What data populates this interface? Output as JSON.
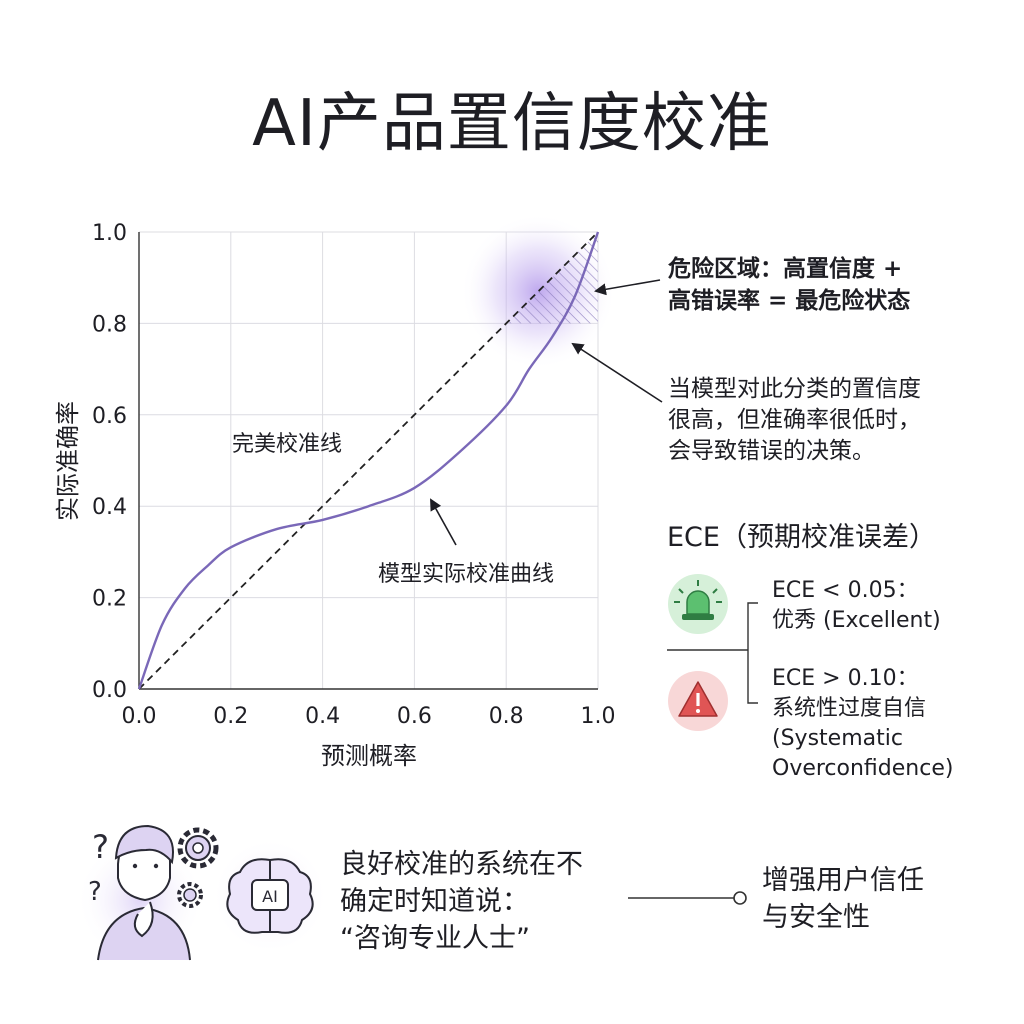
{
  "title": "AI产品置信度校准",
  "chart_data": {
    "type": "line",
    "xlabel": "预测概率",
    "ylabel": "实际准确率",
    "xlim": [
      0,
      1
    ],
    "ylim": [
      0,
      1
    ],
    "x_ticks": [
      "0.0",
      "0.2",
      "0.4",
      "0.6",
      "0.8",
      "1.0"
    ],
    "y_ticks": [
      "0.0",
      "0.2",
      "0.4",
      "0.6",
      "0.8",
      "1.0"
    ],
    "grid": true,
    "series": [
      {
        "name": "完美校准线",
        "style": "dashed",
        "color": "#222222",
        "points": [
          [
            0,
            0
          ],
          [
            1,
            1
          ]
        ]
      },
      {
        "name": "模型实际校准曲线",
        "style": "solid",
        "color": "#7a68b8",
        "points": [
          [
            0,
            0
          ],
          [
            0.05,
            0.14
          ],
          [
            0.1,
            0.22
          ],
          [
            0.15,
            0.27
          ],
          [
            0.2,
            0.31
          ],
          [
            0.3,
            0.35
          ],
          [
            0.4,
            0.37
          ],
          [
            0.5,
            0.4
          ],
          [
            0.6,
            0.44
          ],
          [
            0.7,
            0.52
          ],
          [
            0.8,
            0.62
          ],
          [
            0.85,
            0.7
          ],
          [
            0.9,
            0.77
          ],
          [
            0.95,
            0.86
          ],
          [
            1.0,
            1.0
          ]
        ]
      }
    ],
    "danger_region": {
      "x": [
        0.8,
        1.0
      ],
      "y": [
        0.8,
        1.0
      ]
    },
    "annotations": {
      "perfect_label": "完美校准线",
      "curve_label": "模型实际校准曲线"
    }
  },
  "danger": {
    "line1": "危险区域：高置信度 +",
    "line2": "高错误率 = 最危险状态"
  },
  "explain": {
    "line1": "当模型对此分类的置信度",
    "line2": "很高，但准确率很低时，",
    "line3": "会导致错误的决策。"
  },
  "ece": {
    "title": "ECE（预期校准误差）",
    "good_line1": "ECE < 0.05：",
    "good_line2": "优秀 (Excellent)",
    "bad_line1": "ECE > 0.10：",
    "bad_line2": "系统性过度自信",
    "bad_line3": "(Systematic",
    "bad_line4": "Overconfidence)",
    "good_color": "#3ea35a",
    "bad_color": "#e05555",
    "good_icon": "green-siren-icon",
    "bad_icon": "red-warning-icon"
  },
  "bottom": {
    "ai_badge": "AI",
    "quote_line1": "良好校准的系统在不",
    "quote_line2": "确定时知道说：",
    "quote_line3": "“咨询专业人士”",
    "result_line1": "增强用户信任",
    "result_line2": "与安全性",
    "icons": [
      "question-mark-icon",
      "thinking-person-icon",
      "gear-icon",
      "ai-brain-icon"
    ]
  }
}
